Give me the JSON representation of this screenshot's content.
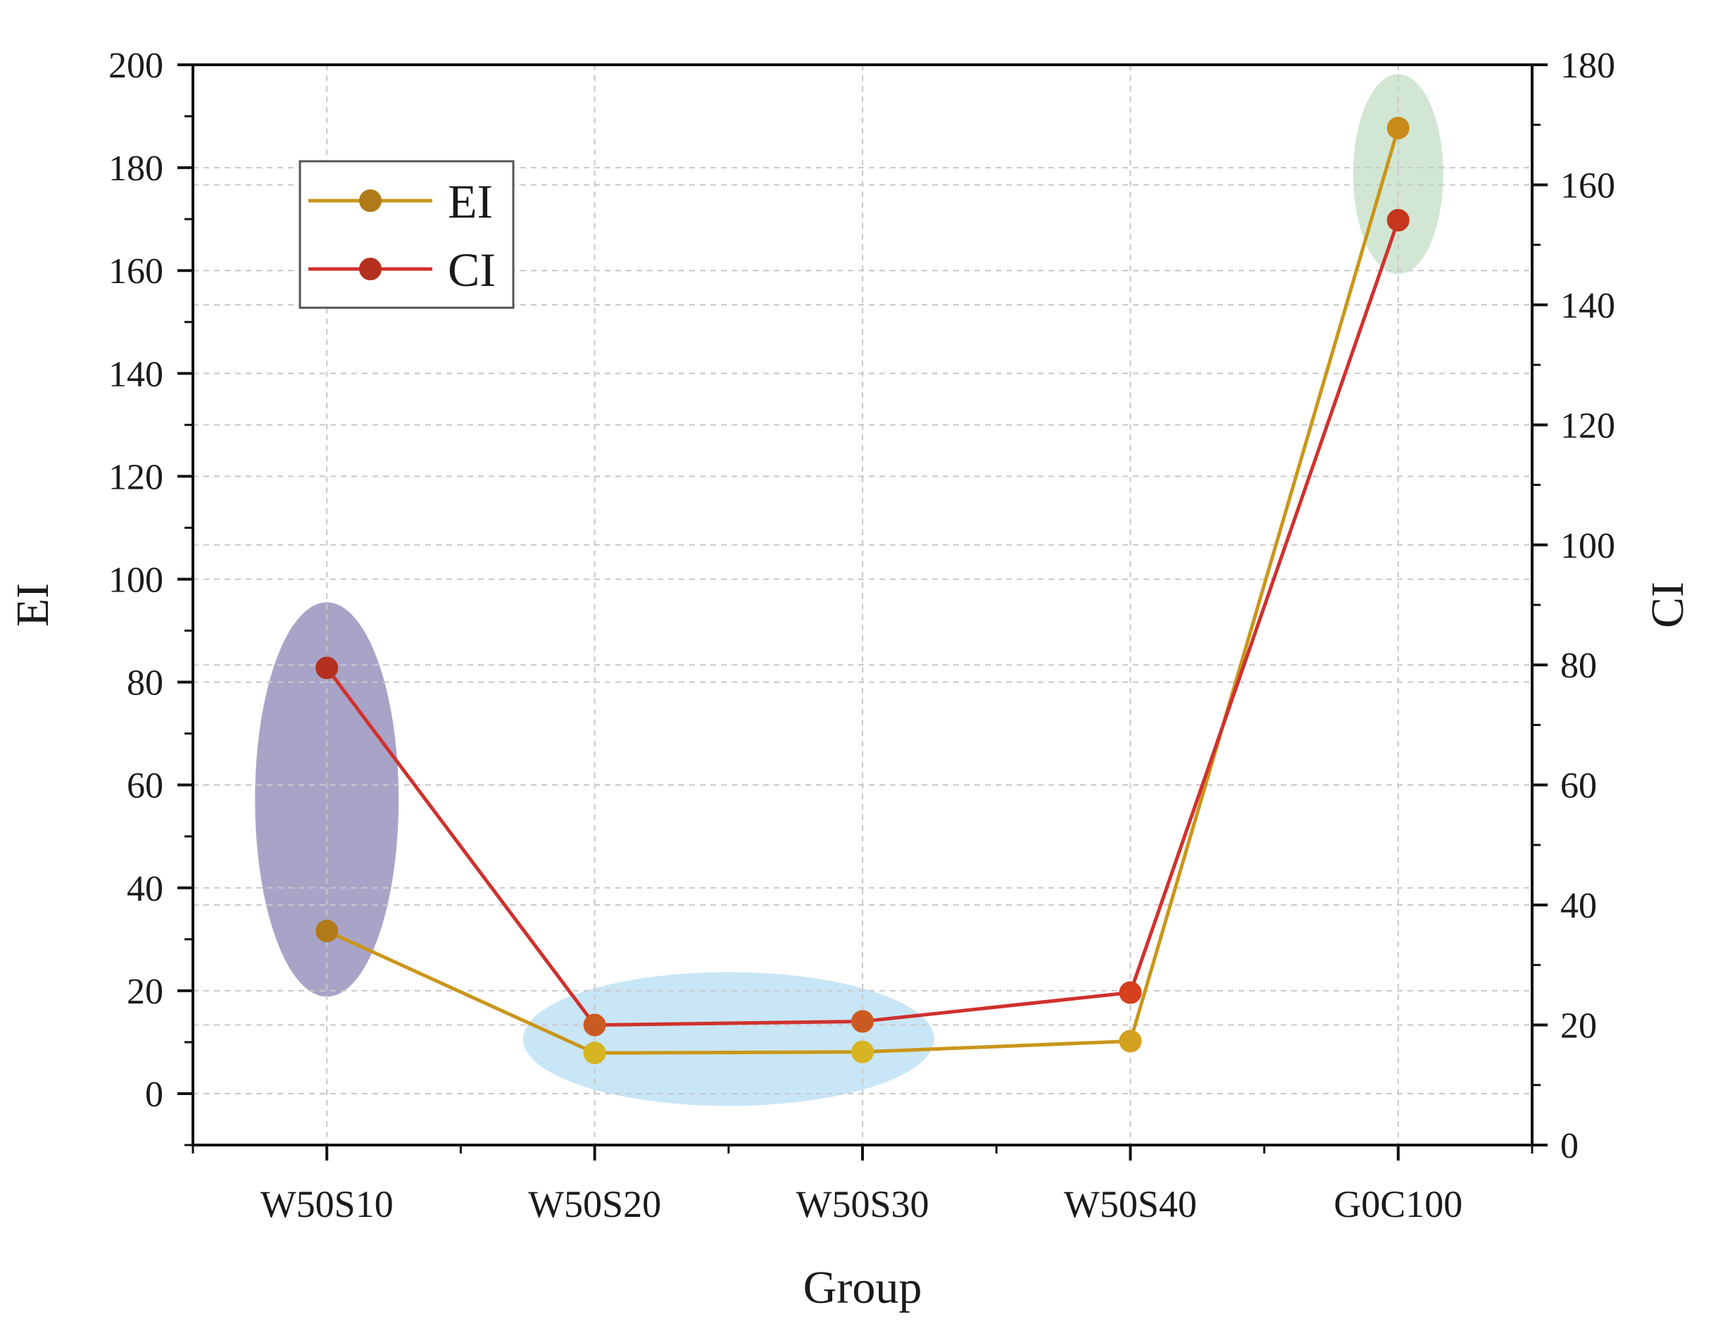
{
  "chart_data": {
    "type": "line",
    "title": "",
    "xlabel": "Group",
    "ylabel_left": "EI",
    "ylabel_right": "CI",
    "categories": [
      "W50S10",
      "W50S20",
      "W50S30",
      "W50S40",
      "G0C100"
    ],
    "ylim_left": [
      -10,
      200
    ],
    "ylim_right": [
      0,
      180
    ],
    "yticks_left": [
      0,
      20,
      40,
      60,
      80,
      100,
      120,
      140,
      160,
      180,
      200
    ],
    "yticks_right": [
      0,
      20,
      40,
      60,
      80,
      100,
      120,
      140,
      160,
      180
    ],
    "ytick_labels_left": [
      "0",
      "20",
      "40",
      "60",
      "80",
      "100",
      "120",
      "140",
      "160",
      "180",
      "200"
    ],
    "ytick_labels_right": [
      "0",
      "20",
      "40",
      "60",
      "80",
      "100",
      "120",
      "140",
      "160",
      "180"
    ],
    "grid": true,
    "legend_position": "top-left",
    "series": [
      {
        "name": "EI",
        "axis": "left",
        "color": "#C9961A",
        "marker_colors": [
          "#B07A18",
          "#D6B422",
          "#D6B422",
          "#D4A020",
          "#C98A18"
        ],
        "values": [
          31.6,
          7.9,
          8.1,
          10.2,
          187.7
        ]
      },
      {
        "name": "CI",
        "axis": "right",
        "color": "#D0312D",
        "marker_colors": [
          "#B5301E",
          "#CB5A22",
          "#CB5A22",
          "#D5401E",
          "#C5361C"
        ],
        "values": [
          79.5,
          20.0,
          20.6,
          25.4,
          154.1
        ]
      }
    ],
    "highlights": [
      {
        "name": "W50S10 cluster",
        "color": "#9B93BE"
      },
      {
        "name": "W50S20-W50S30 cluster",
        "color": "#BFE2F4"
      },
      {
        "name": "G0C100 cluster",
        "color": "#C9E3CD"
      }
    ]
  }
}
